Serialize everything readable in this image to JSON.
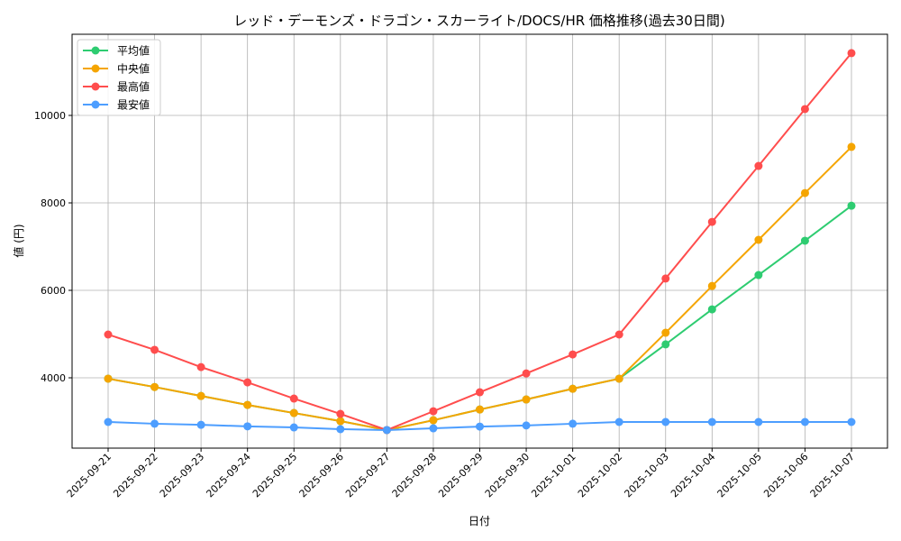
{
  "chart_data": {
    "type": "line",
    "title": "レッド・デーモンズ・ドラゴン・スカーライト/DOCS/HR 価格推移(過去30日間)",
    "xlabel": "日付",
    "ylabel": "値 (円)",
    "categories": [
      "2025-09-21",
      "2025-09-22",
      "2025-09-23",
      "2025-09-24",
      "2025-09-25",
      "2025-09-26",
      "2025-09-27",
      "2025-09-28",
      "2025-09-29",
      "2025-09-30",
      "2025-10-01",
      "2025-10-02",
      "2025-10-03",
      "2025-10-04",
      "2025-10-05",
      "2025-10-06",
      "2025-10-07"
    ],
    "yticks": [
      4000,
      6000,
      8000,
      10000
    ],
    "ylim": [
      2392,
      11856
    ],
    "grid": true,
    "legend_position": "top-left",
    "series": [
      {
        "name": "平均値",
        "color": "#2ecc71",
        "values": [
          3980,
          3790,
          3585,
          3380,
          3195,
          3010,
          2805,
          3030,
          3275,
          3505,
          3750,
          3980,
          4765,
          5565,
          6350,
          7135,
          7935
        ]
      },
      {
        "name": "中央値",
        "color": "#f5a500",
        "values": [
          3980,
          3790,
          3585,
          3380,
          3195,
          3010,
          2805,
          3030,
          3275,
          3505,
          3750,
          3980,
          5030,
          6100,
          7155,
          8225,
          9280
        ]
      },
      {
        "name": "最高値",
        "color": "#ff4d4d",
        "values": [
          4990,
          4640,
          4245,
          3895,
          3525,
          3175,
          2805,
          3235,
          3670,
          4100,
          4535,
          4990,
          6270,
          7565,
          8845,
          10145,
          11425
        ]
      },
      {
        "name": "最安値",
        "color": "#4d9eff",
        "values": [
          2990,
          2950,
          2925,
          2890,
          2865,
          2825,
          2805,
          2845,
          2885,
          2910,
          2950,
          2990,
          2990,
          2990,
          2990,
          2990,
          2990
        ]
      }
    ]
  }
}
